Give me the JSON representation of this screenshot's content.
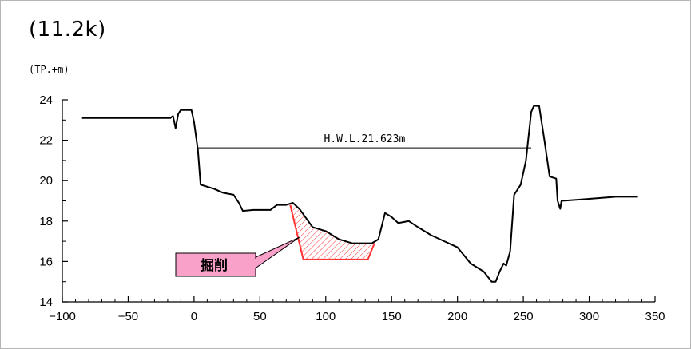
{
  "page": {
    "title": "(11.2k)",
    "unit_label": "(TP.+m)"
  },
  "chart_data": {
    "type": "line",
    "title": "(11.2k)",
    "ylabel": "(TP.+m)",
    "xlabel": "",
    "xlim": [
      -100,
      350
    ],
    "ylim": [
      14,
      24
    ],
    "x_ticks": [
      -100,
      -50,
      0,
      50,
      100,
      150,
      200,
      250,
      300,
      350
    ],
    "y_ticks": [
      14,
      16,
      18,
      20,
      22,
      24
    ],
    "grid": false,
    "series": [
      {
        "values_xy": [
          [
            -85,
            23.1
          ],
          [
            -18,
            23.1
          ],
          [
            -16,
            23.2
          ],
          [
            -14,
            22.6
          ],
          [
            -12,
            23.3
          ],
          [
            -10,
            23.5
          ],
          [
            -2,
            23.5
          ],
          [
            0,
            22.9
          ],
          [
            3,
            21.5
          ],
          [
            5,
            19.8
          ],
          [
            15,
            19.6
          ],
          [
            22,
            19.4
          ],
          [
            30,
            19.3
          ],
          [
            34,
            18.9
          ],
          [
            37,
            18.5
          ],
          [
            45,
            18.55
          ],
          [
            58,
            18.55
          ],
          [
            63,
            18.8
          ],
          [
            70,
            18.8
          ],
          [
            75,
            18.9
          ],
          [
            80,
            18.6
          ],
          [
            90,
            17.7
          ],
          [
            100,
            17.5
          ],
          [
            110,
            17.1
          ],
          [
            120,
            16.9
          ],
          [
            125,
            16.9
          ],
          [
            130,
            16.9
          ],
          [
            135,
            16.9
          ],
          [
            140,
            17.1
          ],
          [
            145,
            18.4
          ],
          [
            150,
            18.2
          ],
          [
            155,
            17.9
          ],
          [
            163,
            18.0
          ],
          [
            170,
            17.7
          ],
          [
            180,
            17.3
          ],
          [
            190,
            17.0
          ],
          [
            200,
            16.7
          ],
          [
            210,
            15.9
          ],
          [
            220,
            15.5
          ],
          [
            226,
            15.0
          ],
          [
            229,
            15.0
          ],
          [
            232,
            15.5
          ],
          [
            235,
            15.9
          ],
          [
            237,
            15.8
          ],
          [
            240,
            16.5
          ],
          [
            243,
            19.3
          ],
          [
            248,
            19.8
          ],
          [
            252,
            21.0
          ],
          [
            256,
            23.4
          ],
          [
            258,
            23.7
          ],
          [
            262,
            23.7
          ],
          [
            266,
            22.0
          ],
          [
            270,
            20.2
          ],
          [
            275,
            20.1
          ],
          [
            276,
            19.0
          ],
          [
            278,
            18.6
          ],
          [
            279,
            19.0
          ],
          [
            290,
            19.05
          ],
          [
            300,
            19.1
          ],
          [
            320,
            19.2
          ],
          [
            337,
            19.2
          ]
        ]
      }
    ],
    "hwl": {
      "label": "H.W.L.21.623m",
      "y": 21.623,
      "x_range": [
        3,
        256
      ]
    },
    "excavation": {
      "label": "掘削",
      "polygon_xy": [
        [
          73,
          18.8
        ],
        [
          80,
          18.6
        ],
        [
          90,
          17.7
        ],
        [
          100,
          17.5
        ],
        [
          110,
          17.1
        ],
        [
          120,
          16.9
        ],
        [
          130,
          16.9
        ],
        [
          137,
          16.9
        ],
        [
          132,
          16.1
        ],
        [
          83,
          16.1
        ]
      ],
      "color": "#ff3333"
    },
    "colors": {
      "line": "#000000",
      "excavation": "#ff3333",
      "callout_fill": "#f9a1c8"
    }
  }
}
